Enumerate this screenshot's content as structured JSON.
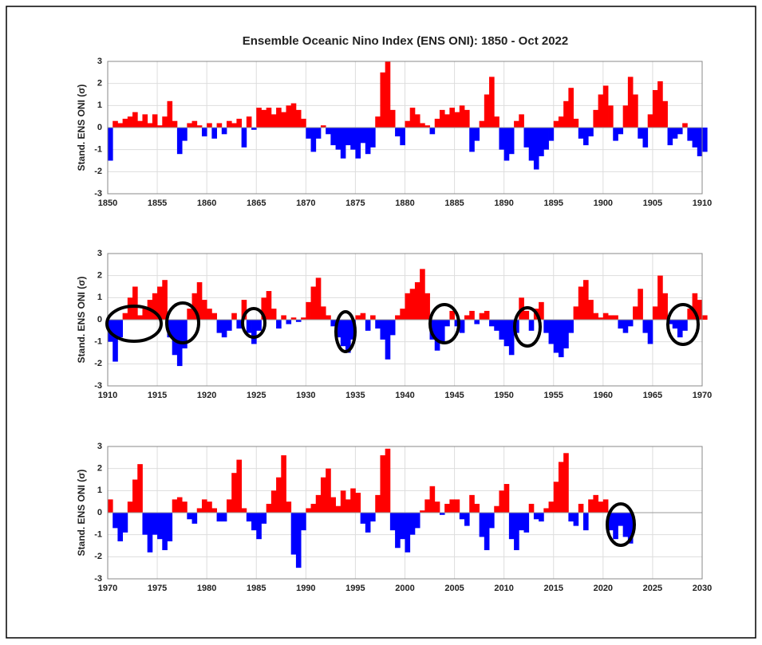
{
  "chart_data": [
    {
      "type": "area",
      "title": "Ensemble Oceanic Nino Index (ENS ONI): 1850 - Oct 2022",
      "y_label": "Stand. ENS ONI (σ)",
      "color_positive": "#ff0000",
      "color_negative": "#0000ff",
      "grid": true,
      "xlim": [
        1850,
        1910
      ],
      "xticks": [
        1850,
        1855,
        1860,
        1865,
        1870,
        1875,
        1880,
        1885,
        1890,
        1895,
        1900,
        1905,
        1910
      ],
      "ylim": [
        -3,
        3
      ],
      "yticks": [
        -3,
        -2,
        -1,
        0,
        1,
        2,
        3
      ],
      "x": [
        1850,
        1850.5,
        1851,
        1851.5,
        1852,
        1852.5,
        1853,
        1853.5,
        1854,
        1854.5,
        1855,
        1855.5,
        1856,
        1856.5,
        1857,
        1857.5,
        1858,
        1858.5,
        1859,
        1859.5,
        1860,
        1860.5,
        1861,
        1861.5,
        1862,
        1862.5,
        1863,
        1863.5,
        1864,
        1864.5,
        1865,
        1865.5,
        1866,
        1866.5,
        1867,
        1867.5,
        1868,
        1868.5,
        1869,
        1869.5,
        1870,
        1870.5,
        1871,
        1871.5,
        1872,
        1872.5,
        1873,
        1873.5,
        1874,
        1874.5,
        1875,
        1875.5,
        1876,
        1876.5,
        1877,
        1877.5,
        1878,
        1878.5,
        1879,
        1879.5,
        1880,
        1880.5,
        1881,
        1881.5,
        1882,
        1882.5,
        1883,
        1883.5,
        1884,
        1884.5,
        1885,
        1885.5,
        1886,
        1886.5,
        1887,
        1887.5,
        1888,
        1888.5,
        1889,
        1889.5,
        1890,
        1890.5,
        1891,
        1891.5,
        1892,
        1892.5,
        1893,
        1893.5,
        1894,
        1894.5,
        1895,
        1895.5,
        1896,
        1896.5,
        1897,
        1897.5,
        1898,
        1898.5,
        1899,
        1899.5,
        1900,
        1900.5,
        1901,
        1901.5,
        1902,
        1902.5,
        1903,
        1903.5,
        1904,
        1904.5,
        1905,
        1905.5,
        1906,
        1906.5,
        1907,
        1907.5,
        1908,
        1908.5,
        1909,
        1909.5,
        1910
      ],
      "values": [
        -1.5,
        0.3,
        0.2,
        0.4,
        0.5,
        0.7,
        0.3,
        0.6,
        0.2,
        0.6,
        0.1,
        0.5,
        1.2,
        0.3,
        -1.2,
        -0.6,
        0.2,
        0.3,
        0.1,
        -0.4,
        0.2,
        -0.5,
        0.2,
        -0.3,
        0.3,
        0.2,
        0.4,
        -0.9,
        0.5,
        -0.1,
        0.9,
        0.8,
        0.9,
        0.6,
        0.9,
        0.7,
        1.0,
        1.1,
        0.8,
        0.4,
        -0.5,
        -1.1,
        -0.5,
        0.1,
        -0.3,
        -0.8,
        -1.0,
        -1.4,
        -0.8,
        -1.0,
        -1.4,
        -0.7,
        -1.2,
        -0.9,
        0.5,
        2.5,
        3.0,
        0.8,
        -0.4,
        -0.8,
        0.3,
        0.9,
        0.6,
        0.2,
        0.1,
        -0.3,
        0.4,
        0.8,
        0.6,
        0.9,
        0.7,
        1.0,
        0.8,
        -1.1,
        -0.6,
        0.3,
        1.5,
        2.3,
        0.5,
        -1.0,
        -1.5,
        -1.2,
        0.3,
        0.6,
        -0.9,
        -1.5,
        -1.9,
        -1.3,
        -1.0,
        -0.6,
        0.3,
        0.5,
        1.2,
        1.8,
        0.4,
        -0.5,
        -0.8,
        -0.4,
        0.8,
        1.5,
        1.9,
        1.0,
        -0.6,
        -0.3,
        1.0,
        2.3,
        1.5,
        -0.5,
        -0.9,
        0.6,
        1.7,
        2.1,
        1.2,
        -0.8,
        -0.5,
        -0.3,
        0.2,
        -0.6,
        -0.9,
        -1.3,
        -1.1
      ]
    },
    {
      "type": "area",
      "y_label": "Stand. ENS ONI (σ)",
      "color_positive": "#ff0000",
      "color_negative": "#0000ff",
      "grid": true,
      "xlim": [
        1910,
        1970
      ],
      "xticks": [
        1910,
        1915,
        1920,
        1925,
        1930,
        1935,
        1940,
        1945,
        1950,
        1955,
        1960,
        1965,
        1970
      ],
      "ylim": [
        -3,
        3
      ],
      "yticks": [
        -3,
        -2,
        -1,
        0,
        1,
        2,
        3
      ],
      "x": [
        1910,
        1910.5,
        1911,
        1911.5,
        1912,
        1912.5,
        1913,
        1913.5,
        1914,
        1914.5,
        1915,
        1915.5,
        1916,
        1916.5,
        1917,
        1917.5,
        1918,
        1918.5,
        1919,
        1919.5,
        1920,
        1920.5,
        1921,
        1921.5,
        1922,
        1922.5,
        1923,
        1923.5,
        1924,
        1924.5,
        1925,
        1925.5,
        1926,
        1926.5,
        1927,
        1927.5,
        1928,
        1928.5,
        1929,
        1929.5,
        1930,
        1930.5,
        1931,
        1931.5,
        1932,
        1932.5,
        1933,
        1933.5,
        1934,
        1934.5,
        1935,
        1935.5,
        1936,
        1936.5,
        1937,
        1937.5,
        1938,
        1938.5,
        1939,
        1939.5,
        1940,
        1940.5,
        1941,
        1941.5,
        1942,
        1942.5,
        1943,
        1943.5,
        1944,
        1944.5,
        1945,
        1945.5,
        1946,
        1946.5,
        1947,
        1947.5,
        1948,
        1948.5,
        1949,
        1949.5,
        1950,
        1950.5,
        1951,
        1951.5,
        1952,
        1952.5,
        1953,
        1953.5,
        1954,
        1954.5,
        1955,
        1955.5,
        1956,
        1956.5,
        1957,
        1957.5,
        1958,
        1958.5,
        1959,
        1959.5,
        1960,
        1960.5,
        1961,
        1961.5,
        1962,
        1962.5,
        1963,
        1963.5,
        1964,
        1964.5,
        1965,
        1965.5,
        1966,
        1966.5,
        1967,
        1967.5,
        1968,
        1968.5,
        1969,
        1969.5,
        1970
      ],
      "values": [
        -1.0,
        -1.9,
        -0.8,
        0.3,
        1.0,
        1.5,
        0.2,
        0.5,
        0.9,
        1.2,
        1.5,
        1.8,
        -0.8,
        -1.6,
        -2.1,
        -1.3,
        0.5,
        1.2,
        1.7,
        0.9,
        0.5,
        0.3,
        -0.6,
        -0.8,
        -0.5,
        0.3,
        -0.4,
        0.9,
        -0.6,
        -1.1,
        -0.5,
        1.0,
        1.3,
        0.5,
        -0.4,
        0.2,
        -0.2,
        0.1,
        -0.1,
        0.1,
        0.8,
        1.5,
        1.9,
        0.6,
        0.2,
        -0.3,
        -0.8,
        -1.2,
        -1.5,
        -0.9,
        0.2,
        0.3,
        -0.5,
        0.2,
        -0.4,
        -0.9,
        -1.8,
        -0.7,
        0.2,
        0.5,
        1.2,
        1.4,
        1.7,
        2.3,
        1.2,
        -0.9,
        -1.4,
        -1.0,
        -0.3,
        0.4,
        -0.3,
        -0.6,
        0.2,
        0.4,
        -0.2,
        0.3,
        0.4,
        -0.3,
        -0.5,
        -0.9,
        -1.2,
        -1.6,
        -0.6,
        1.0,
        0.4,
        -0.5,
        0.5,
        0.8,
        -0.6,
        -1.1,
        -1.5,
        -1.7,
        -1.3,
        -0.6,
        0.6,
        1.5,
        1.8,
        0.9,
        0.3,
        0.1,
        0.3,
        0.2,
        0.2,
        -0.4,
        -0.6,
        -0.3,
        0.6,
        1.4,
        -0.6,
        -1.1,
        0.6,
        2.0,
        1.2,
        -0.2,
        -0.4,
        -0.8,
        -0.5,
        0.5,
        1.2,
        0.9,
        0.2
      ]
    },
    {
      "type": "area",
      "y_label": "Stand. ENS ONI (σ)",
      "color_positive": "#ff0000",
      "color_negative": "#0000ff",
      "grid": true,
      "xlim": [
        1970,
        2030
      ],
      "xticks": [
        1970,
        1975,
        1980,
        1985,
        1990,
        1995,
        2000,
        2005,
        2010,
        2015,
        2020,
        2025,
        2030
      ],
      "ylim": [
        -3,
        3
      ],
      "yticks": [
        -3,
        -2,
        -1,
        0,
        1,
        2,
        3
      ],
      "x": [
        1970,
        1970.5,
        1971,
        1971.5,
        1972,
        1972.5,
        1973,
        1973.5,
        1974,
        1974.5,
        1975,
        1975.5,
        1976,
        1976.5,
        1977,
        1977.5,
        1978,
        1978.5,
        1979,
        1979.5,
        1980,
        1980.5,
        1981,
        1981.5,
        1982,
        1982.5,
        1983,
        1983.5,
        1984,
        1984.5,
        1985,
        1985.5,
        1986,
        1986.5,
        1987,
        1987.5,
        1988,
        1988.5,
        1989,
        1989.5,
        1990,
        1990.5,
        1991,
        1991.5,
        1992,
        1992.5,
        1993,
        1993.5,
        1994,
        1994.5,
        1995,
        1995.5,
        1996,
        1996.5,
        1997,
        1997.5,
        1998,
        1998.5,
        1999,
        1999.5,
        2000,
        2000.5,
        2001,
        2001.5,
        2002,
        2002.5,
        2003,
        2003.5,
        2004,
        2004.5,
        2005,
        2005.5,
        2006,
        2006.5,
        2007,
        2007.5,
        2008,
        2008.5,
        2009,
        2009.5,
        2010,
        2010.5,
        2011,
        2011.5,
        2012,
        2012.5,
        2013,
        2013.5,
        2014,
        2014.5,
        2015,
        2015.5,
        2016,
        2016.5,
        2017,
        2017.5,
        2018,
        2018.5,
        2019,
        2019.5,
        2020,
        2020.5,
        2021,
        2021.5,
        2022,
        2022.5
      ],
      "values": [
        0.6,
        -0.7,
        -1.3,
        -0.9,
        0.5,
        1.5,
        2.2,
        -1.0,
        -1.8,
        -1.0,
        -1.2,
        -1.7,
        -1.3,
        0.6,
        0.7,
        0.5,
        -0.3,
        -0.5,
        0.2,
        0.6,
        0.5,
        0.2,
        -0.4,
        -0.4,
        0.6,
        1.8,
        2.4,
        0.2,
        -0.4,
        -0.8,
        -1.2,
        -0.5,
        0.4,
        1.0,
        1.6,
        2.6,
        0.5,
        -1.9,
        -2.5,
        -0.8,
        0.2,
        0.4,
        0.8,
        1.6,
        2.0,
        0.7,
        0.3,
        1.0,
        0.6,
        1.1,
        0.9,
        -0.5,
        -0.9,
        -0.4,
        0.8,
        2.6,
        2.9,
        -0.8,
        -1.6,
        -1.2,
        -1.8,
        -1.0,
        -0.7,
        0.1,
        0.6,
        1.2,
        0.5,
        -0.1,
        0.4,
        0.6,
        0.6,
        -0.3,
        -0.6,
        0.8,
        0.4,
        -1.1,
        -1.7,
        -0.7,
        0.3,
        1.0,
        1.3,
        -1.2,
        -1.7,
        -0.8,
        -0.9,
        0.4,
        -0.3,
        -0.4,
        0.2,
        0.5,
        1.4,
        2.3,
        2.7,
        -0.4,
        -0.6,
        0.4,
        -0.8,
        0.6,
        0.8,
        0.5,
        0.6,
        -0.8,
        -1.2,
        -0.6,
        -1.1,
        -1.4
      ]
    }
  ]
}
